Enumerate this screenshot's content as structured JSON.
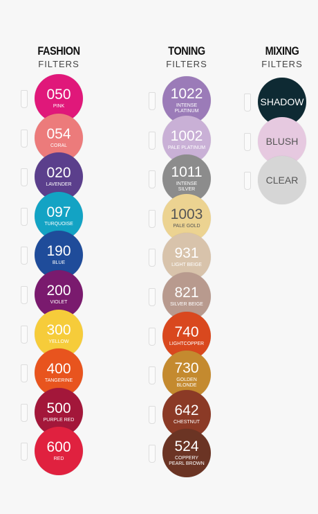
{
  "columns": [
    {
      "title": "FASHION",
      "subtitle": "FILTERS",
      "items": [
        {
          "code": "050",
          "name": "PINK",
          "color": "#e0187a"
        },
        {
          "code": "054",
          "name": "CORAL",
          "color": "#ec7b7b"
        },
        {
          "code": "020",
          "name": "LAVENDER",
          "color": "#5b3f8c"
        },
        {
          "code": "097",
          "name": "TURQUOISE",
          "color": "#13a3c4"
        },
        {
          "code": "190",
          "name": "BLUE",
          "color": "#1f4c9a"
        },
        {
          "code": "200",
          "name": "VIOLET",
          "color": "#7a1a6e"
        },
        {
          "code": "300",
          "name": "YELLOW",
          "color": "#f6cc3a"
        },
        {
          "code": "400",
          "name": "TANGERINE",
          "color": "#e8541e"
        },
        {
          "code": "500",
          "name": "PURPLE RED",
          "color": "#a3173a"
        },
        {
          "code": "600",
          "name": "RED",
          "color": "#e0213f"
        }
      ]
    },
    {
      "title": "TONING",
      "subtitle": "FILTERS",
      "items": [
        {
          "code": "1022",
          "name": "INTENSE PLATINUM",
          "color": "#9b7bb8"
        },
        {
          "code": "1002",
          "name": "PALE PLATINUM",
          "color": "#c9b0d6"
        },
        {
          "code": "1011",
          "name": "INTENSE SILVER",
          "color": "#8c8c8c"
        },
        {
          "code": "1003",
          "name": "PALE GOLD",
          "color": "#ecd391"
        },
        {
          "code": "931",
          "name": "LIGHT BEIGE",
          "color": "#d8c3ab"
        },
        {
          "code": "821",
          "name": "SILVER BEIGE",
          "color": "#b89a8e"
        },
        {
          "code": "740",
          "name": "LIGHTCOPPER",
          "color": "#d9481e"
        },
        {
          "code": "730",
          "name": "GOLDEN BLONDE",
          "color": "#c48a2f"
        },
        {
          "code": "642",
          "name": "CHESTNUT",
          "color": "#8b3a26"
        },
        {
          "code": "524",
          "name": "COPPERY PEARL BROWN",
          "color": "#6b3424"
        }
      ]
    },
    {
      "title": "MIXING",
      "subtitle": "FILTERS",
      "items": [
        {
          "code": "SHADOW",
          "color": "#0e2a33"
        },
        {
          "code": "BLUSH",
          "color": "#e6c9e0"
        },
        {
          "code": "CLEAR",
          "color": "#d6d6d6"
        }
      ]
    }
  ]
}
